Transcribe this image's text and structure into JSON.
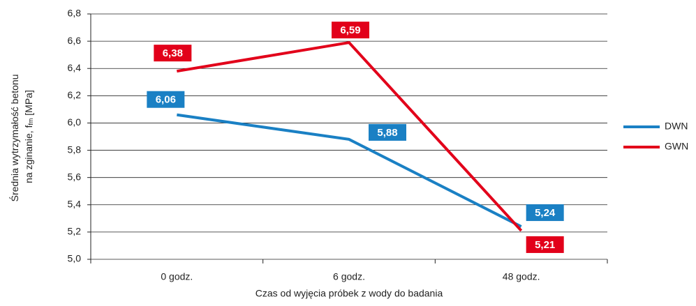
{
  "chart_data": {
    "type": "line",
    "y_label_line1": "Średnia wytrzymałość betonu",
    "y_label_line2": "na zginanie, f",
    "y_label_subscript": "fm",
    "y_label_unit": " [MPa]",
    "x_label": "Czas od wyjęcia próbek z wody do badania",
    "categories": [
      "0 godz.",
      "6 godz.",
      "48 godz."
    ],
    "series": [
      {
        "name": "DWN",
        "color": "#1a80c4",
        "values": [
          6.06,
          5.88,
          5.24
        ],
        "value_labels": [
          "6,06",
          "5,88",
          "5,24"
        ]
      },
      {
        "name": "GWN",
        "color": "#e2001a",
        "values": [
          6.38,
          6.59,
          5.21
        ],
        "value_labels": [
          "6,38",
          "6,59",
          "5,21"
        ]
      }
    ],
    "ylim": [
      5.0,
      6.8
    ],
    "yticks": [
      {
        "value": 5.0,
        "label": "5,0"
      },
      {
        "value": 5.2,
        "label": "5,2"
      },
      {
        "value": 5.4,
        "label": "5,4"
      },
      {
        "value": 5.6,
        "label": "5,6"
      },
      {
        "value": 5.8,
        "label": "5,8"
      },
      {
        "value": 6.0,
        "label": "6,0"
      },
      {
        "value": 6.2,
        "label": "6,2"
      },
      {
        "value": 6.4,
        "label": "6,4"
      },
      {
        "value": 6.6,
        "label": "6,6"
      },
      {
        "value": 6.8,
        "label": "6,8"
      }
    ],
    "grid": true,
    "legend": "right"
  }
}
